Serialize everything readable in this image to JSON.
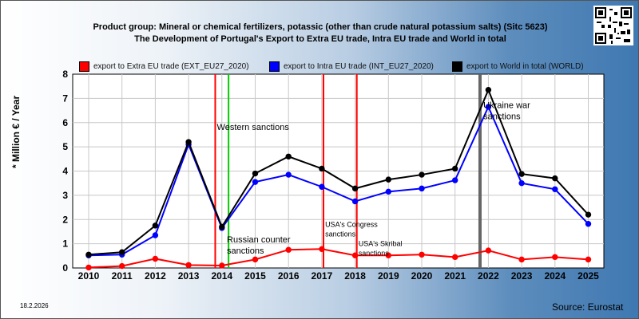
{
  "title_line1": "Product group: Mineral or chemical fertilizers, potassic (other than crude natural potassium salts) (Sitc 5623)",
  "title_line2": "The Development of Portugal's Export to Extra EU trade, Intra EU trade and World in total",
  "date_stamp": "18.2.2026",
  "source": "Source: Eurostat",
  "chart_data": {
    "type": "line",
    "ylabel": "* Million € / Year",
    "ylim": [
      0,
      8
    ],
    "y_ticks": [
      "0",
      "1",
      "2",
      "3",
      "4",
      "5",
      "6",
      "7",
      "8"
    ],
    "x": [
      "2010",
      "2011",
      "2012",
      "2013",
      "2014",
      "2015",
      "2016",
      "2017",
      "2018",
      "2019",
      "2020",
      "2021",
      "2022",
      "2023",
      "2024",
      "2025"
    ],
    "grid": true,
    "legend_placement": "top",
    "series": [
      {
        "name": "export to Extra EU trade (EXT_EU27_2020)",
        "color": "#ff0000",
        "values": [
          0.02,
          0.08,
          0.38,
          0.12,
          0.1,
          0.35,
          0.75,
          0.78,
          0.52,
          0.52,
          0.55,
          0.45,
          0.72,
          0.35,
          0.45,
          0.35
        ]
      },
      {
        "name": "export to Intra EU trade (INT_EU27_2020)",
        "color": "#0000ff",
        "values": [
          0.52,
          0.55,
          1.35,
          5.1,
          1.65,
          3.55,
          3.85,
          3.35,
          2.75,
          3.15,
          3.28,
          3.62,
          6.65,
          3.5,
          3.25,
          1.82
        ]
      },
      {
        "name": "export to World in total (WORLD)",
        "color": "#000000",
        "values": [
          0.55,
          0.65,
          1.75,
          5.2,
          1.7,
          3.9,
          4.6,
          4.1,
          3.28,
          3.65,
          3.85,
          4.1,
          7.35,
          3.88,
          3.7,
          2.2
        ]
      }
    ],
    "events": [
      {
        "label": "Western sanctions",
        "x": 2013.8,
        "color": "#ff0000"
      },
      {
        "label": "",
        "x": 2014.2,
        "color": "#00cc00"
      },
      {
        "label": "USA's Congress sanctions",
        "x": 2017.05,
        "color": "#ff0000"
      },
      {
        "label": "USA's Skribal sanctions",
        "x": 2018.05,
        "color": "#ff0000"
      },
      {
        "label": "Ukraine war sanctions",
        "x": 2021.75,
        "color": "#666666"
      }
    ],
    "annotations": [
      {
        "text": "Western sanctions",
        "x": 2013.85,
        "y": 5.7
      },
      {
        "text": "Russian counter sanctions",
        "x": 2014.15,
        "y": 1.05
      },
      {
        "text": "USA's Congress sanctions",
        "x": 2017.1,
        "y": 1.7
      },
      {
        "text": "USA's Skribal sanctions",
        "x": 2018.1,
        "y": 0.9
      },
      {
        "text": "Ukraine war sanctions",
        "x": 2021.85,
        "y": 6.6
      }
    ]
  }
}
